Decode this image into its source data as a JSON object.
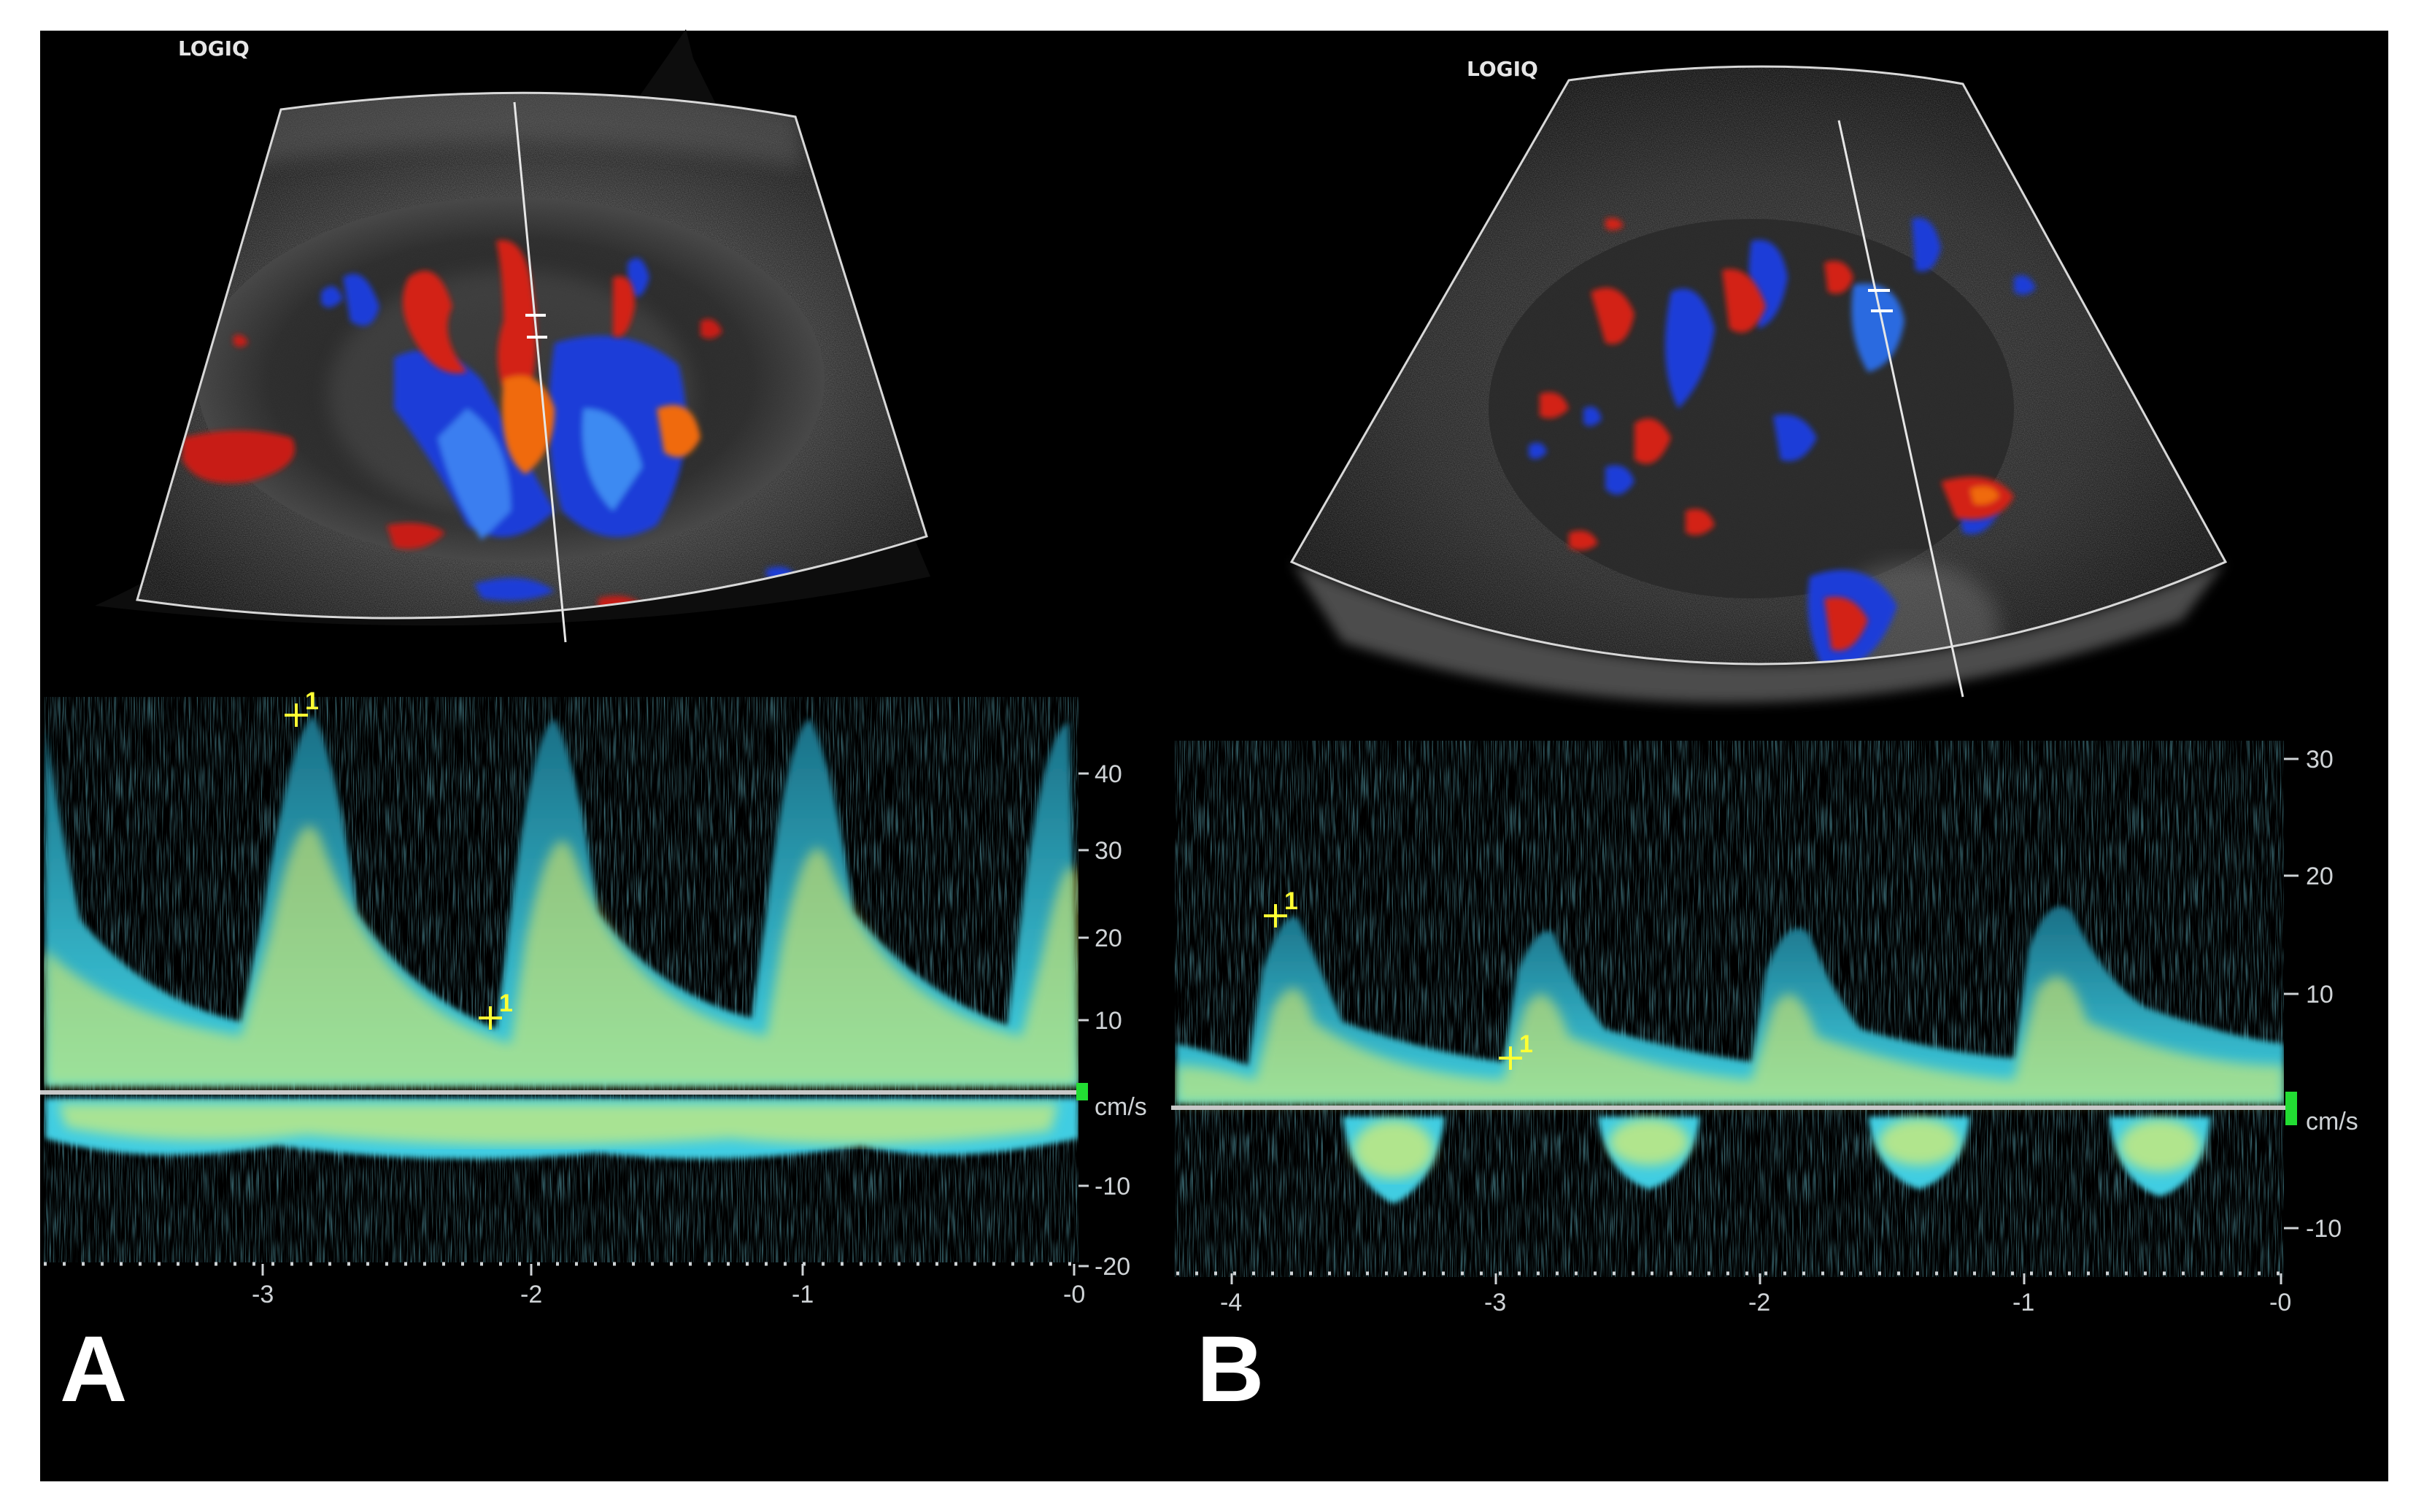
{
  "panels": [
    {
      "label": "A",
      "logo": "LOGIQ",
      "velocity_unit": "cm/s",
      "velocity_ticks": [
        "40",
        "30",
        "20",
        "10",
        "-10",
        "-20"
      ],
      "time_ticks": [
        "-3",
        "-2",
        "-1",
        "-0"
      ],
      "caliper_marks": [
        "1",
        "1"
      ]
    },
    {
      "label": "B",
      "logo": "LOGIQ",
      "velocity_unit": "cm/s",
      "velocity_ticks": [
        "30",
        "20",
        "10",
        "-10"
      ],
      "time_ticks": [
        "-4",
        "-3",
        "-2",
        "-1",
        "-0"
      ],
      "caliper_marks": [
        "1",
        "1"
      ]
    }
  ],
  "colors": {
    "background": "#000000",
    "doppler_red": "#d01e12",
    "doppler_blue": "#1432d2",
    "spectral_cyan": "#36c8e6",
    "spectral_yellow": "#f4f064",
    "caliper": "#ffff33",
    "baseline": "#c8c8c8",
    "marker": "#22dd33"
  }
}
